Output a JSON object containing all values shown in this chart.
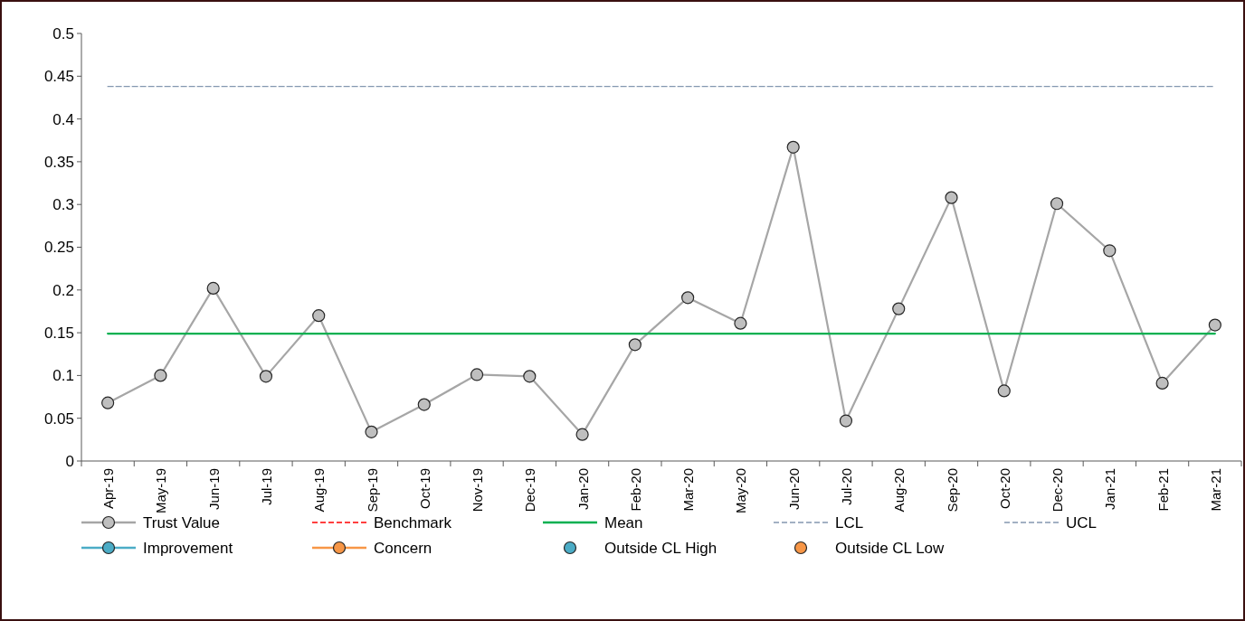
{
  "chart_data": {
    "type": "line",
    "categories": [
      "Apr-19",
      "May-19",
      "Jun-19",
      "Jul-19",
      "Aug-19",
      "Sep-19",
      "Oct-19",
      "Nov-19",
      "Dec-19",
      "Jan-20",
      "Feb-20",
      "Mar-20",
      "May-20",
      "Jun-20",
      "Jul-20",
      "Aug-20",
      "Sep-20",
      "Oct-20",
      "Dec-20",
      "Jan-21",
      "Feb-21",
      "Mar-21"
    ],
    "ylim": [
      0,
      0.5
    ],
    "yticks": [
      0,
      0.05,
      0.1,
      0.15,
      0.2,
      0.25,
      0.3,
      0.35,
      0.4,
      0.45,
      0.5
    ],
    "legend": "bottom",
    "series": [
      {
        "name": "Trust Value",
        "type": "line",
        "color": "#a6a6a6",
        "marker": "circle",
        "line_style": "solid",
        "values": [
          0.068,
          0.1,
          0.202,
          0.099,
          0.17,
          0.034,
          0.066,
          0.101,
          0.099,
          0.031,
          0.136,
          0.191,
          0.161,
          0.367,
          0.047,
          0.178,
          0.308,
          0.082,
          0.301,
          0.246,
          0.091,
          0.159
        ]
      },
      {
        "name": "Benchmark",
        "type": "line",
        "color": "#ff0000",
        "marker": "none",
        "line_style": "dashed",
        "values": [
          null,
          null,
          null,
          null,
          null,
          null,
          null,
          null,
          null,
          null,
          null,
          null,
          null,
          null,
          null,
          null,
          null,
          null,
          null,
          null,
          null,
          null
        ]
      },
      {
        "name": "Mean",
        "type": "line",
        "color": "#00b050",
        "marker": "none",
        "line_style": "solid",
        "values": [
          0.149,
          0.149,
          0.149,
          0.149,
          0.149,
          0.149,
          0.149,
          0.149,
          0.149,
          0.149,
          0.149,
          0.149,
          0.149,
          0.149,
          0.149,
          0.149,
          0.149,
          0.149,
          0.149,
          0.149,
          0.149,
          0.149
        ]
      },
      {
        "name": "LCL",
        "type": "line",
        "color": "#8497b0",
        "marker": "none",
        "line_style": "dashed",
        "values": [
          null,
          null,
          null,
          null,
          null,
          null,
          null,
          null,
          null,
          null,
          null,
          null,
          null,
          null,
          null,
          null,
          null,
          null,
          null,
          null,
          null,
          null
        ]
      },
      {
        "name": "UCL",
        "type": "line",
        "color": "#8497b0",
        "marker": "none",
        "line_style": "dashed",
        "values": [
          0.438,
          0.438,
          0.438,
          0.438,
          0.438,
          0.438,
          0.438,
          0.438,
          0.438,
          0.438,
          0.438,
          0.438,
          0.438,
          0.438,
          0.438,
          0.438,
          0.438,
          0.438,
          0.438,
          0.438,
          0.438,
          0.438
        ]
      },
      {
        "name": "Improvement",
        "type": "line",
        "color": "#4bacc6",
        "marker": "circle",
        "line_style": "solid",
        "values": [
          null,
          null,
          null,
          null,
          null,
          null,
          null,
          null,
          null,
          null,
          null,
          null,
          null,
          null,
          null,
          null,
          null,
          null,
          null,
          null,
          null,
          null
        ]
      },
      {
        "name": "Concern",
        "type": "line",
        "color": "#f79646",
        "marker": "circle",
        "line_style": "solid",
        "values": [
          null,
          null,
          null,
          null,
          null,
          null,
          null,
          null,
          null,
          null,
          null,
          null,
          null,
          null,
          null,
          null,
          null,
          null,
          null,
          null,
          null,
          null
        ]
      },
      {
        "name": "Outside CL High",
        "type": "scatter",
        "color": "#4bacc6",
        "marker": "circle",
        "values": [
          null,
          null,
          null,
          null,
          null,
          null,
          null,
          null,
          null,
          null,
          null,
          null,
          null,
          null,
          null,
          null,
          null,
          null,
          null,
          null,
          null,
          null
        ]
      },
      {
        "name": "Outside CL Low",
        "type": "scatter",
        "color": "#f79646",
        "marker": "circle",
        "values": [
          null,
          null,
          null,
          null,
          null,
          null,
          null,
          null,
          null,
          null,
          null,
          null,
          null,
          null,
          null,
          null,
          null,
          null,
          null,
          null,
          null,
          null
        ]
      }
    ]
  }
}
